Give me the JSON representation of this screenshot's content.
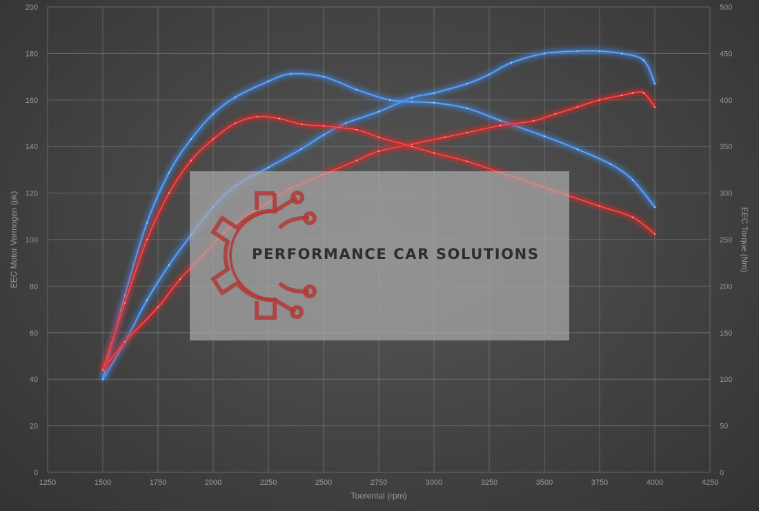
{
  "chart_data": {
    "type": "line",
    "xlabel": "Toerental (rpm)",
    "ylabel_left": "EEC Motor Vermogen (pk)",
    "ylabel_right": "EEC Torque (Nm)",
    "xlim": [
      1250,
      4250
    ],
    "ylim_left": [
      0,
      200
    ],
    "ylim_right": [
      0,
      500
    ],
    "x_ticks": [
      1250,
      1500,
      1750,
      2000,
      2250,
      2500,
      2750,
      3000,
      3250,
      3500,
      3750,
      4000,
      4250
    ],
    "y_ticks_left": [
      0,
      20,
      40,
      60,
      80,
      100,
      120,
      140,
      160,
      180,
      200
    ],
    "y_ticks_right": [
      0,
      50,
      100,
      150,
      200,
      250,
      300,
      350,
      400,
      450,
      500
    ],
    "grid": true,
    "legend": "none",
    "series": [
      {
        "axis": "left",
        "color": "#3f86e0",
        "points": [
          [
            1500,
            40
          ],
          [
            1600,
            56
          ],
          [
            1700,
            74
          ],
          [
            1800,
            89
          ],
          [
            1900,
            102
          ],
          [
            2000,
            114
          ],
          [
            2100,
            123
          ],
          [
            2250,
            131
          ],
          [
            2400,
            139
          ],
          [
            2500,
            145
          ],
          [
            2600,
            150
          ],
          [
            2750,
            155
          ],
          [
            2900,
            161
          ],
          [
            3000,
            163
          ],
          [
            3150,
            167
          ],
          [
            3250,
            171
          ],
          [
            3350,
            176
          ],
          [
            3500,
            180
          ],
          [
            3650,
            181
          ],
          [
            3750,
            181
          ],
          [
            3850,
            180
          ],
          [
            3950,
            177
          ],
          [
            4000,
            167
          ]
        ]
      },
      {
        "axis": "right",
        "color": "#3f86e0",
        "points": [
          [
            1500,
            100
          ],
          [
            1600,
            190
          ],
          [
            1700,
            268
          ],
          [
            1800,
            322
          ],
          [
            1900,
            358
          ],
          [
            2000,
            385
          ],
          [
            2100,
            403
          ],
          [
            2250,
            420
          ],
          [
            2350,
            428
          ],
          [
            2500,
            425
          ],
          [
            2650,
            411
          ],
          [
            2800,
            400
          ],
          [
            2900,
            398
          ],
          [
            3000,
            397
          ],
          [
            3150,
            391
          ],
          [
            3300,
            378
          ],
          [
            3500,
            361
          ],
          [
            3650,
            347
          ],
          [
            3800,
            331
          ],
          [
            3900,
            314
          ],
          [
            4000,
            285
          ]
        ]
      },
      {
        "axis": "left",
        "color": "#e02828",
        "points": [
          [
            1500,
            44
          ],
          [
            1600,
            56
          ],
          [
            1750,
            71
          ],
          [
            1850,
            83
          ],
          [
            1950,
            93
          ],
          [
            2050,
            103
          ],
          [
            2150,
            110
          ],
          [
            2250,
            116
          ],
          [
            2350,
            122
          ],
          [
            2500,
            128
          ],
          [
            2650,
            134
          ],
          [
            2750,
            138
          ],
          [
            2900,
            141
          ],
          [
            3050,
            144
          ],
          [
            3150,
            146
          ],
          [
            3300,
            149
          ],
          [
            3450,
            151
          ],
          [
            3550,
            154
          ],
          [
            3650,
            157
          ],
          [
            3750,
            160
          ],
          [
            3850,
            162
          ],
          [
            3900,
            163
          ],
          [
            3950,
            163
          ],
          [
            4000,
            157
          ]
        ]
      },
      {
        "axis": "right",
        "color": "#e02828",
        "points": [
          [
            1500,
            110
          ],
          [
            1600,
            182
          ],
          [
            1700,
            250
          ],
          [
            1800,
            300
          ],
          [
            1900,
            335
          ],
          [
            2000,
            358
          ],
          [
            2100,
            375
          ],
          [
            2200,
            382
          ],
          [
            2300,
            380
          ],
          [
            2400,
            374
          ],
          [
            2500,
            372
          ],
          [
            2650,
            368
          ],
          [
            2750,
            360
          ],
          [
            2900,
            350
          ],
          [
            3000,
            343
          ],
          [
            3150,
            334
          ],
          [
            3300,
            322
          ],
          [
            3450,
            310
          ],
          [
            3600,
            298
          ],
          [
            3750,
            286
          ],
          [
            3900,
            274
          ],
          [
            4000,
            256
          ]
        ]
      }
    ]
  },
  "watermark": {
    "text": "PERFORMANCE CAR SOLUTIONS"
  }
}
